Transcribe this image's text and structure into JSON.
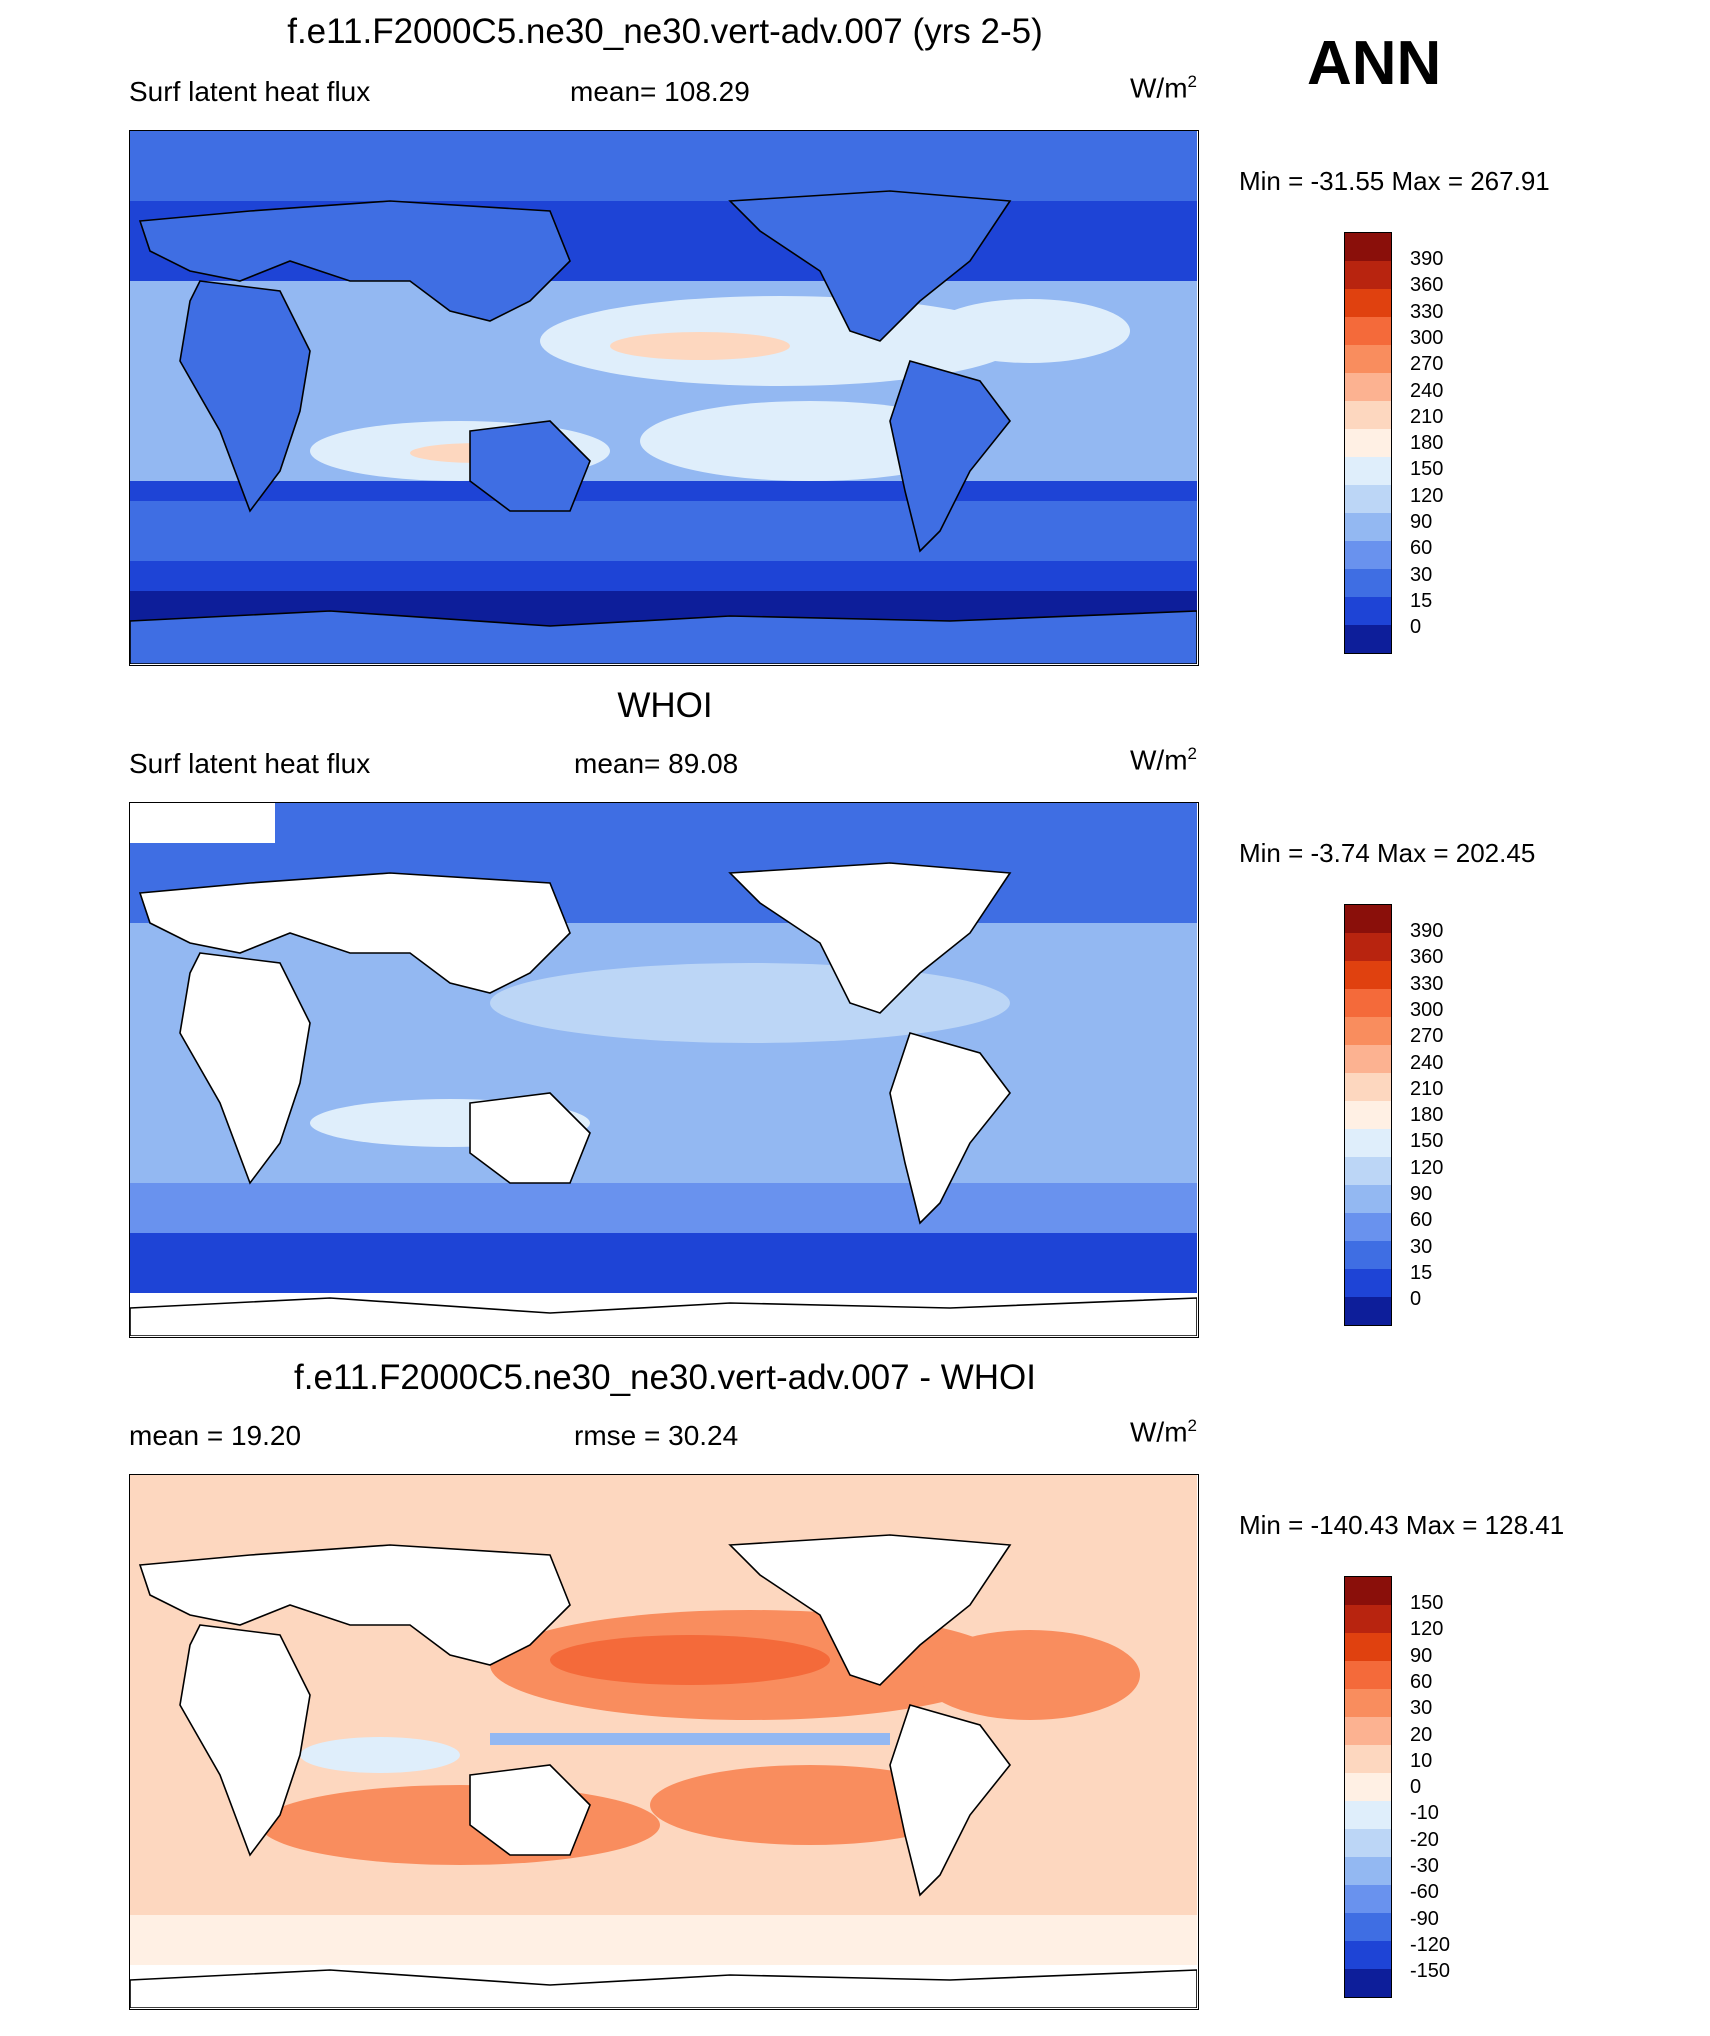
{
  "season": "ANN",
  "panels": [
    {
      "title": "f.e11.F2000C5.ne30_ne30.vert-adv.007 (yrs 2-5)",
      "left_label": "Surf latent heat flux",
      "center_label": "mean= 108.29",
      "units": "W/m",
      "units_sup": "2",
      "minmax": "Min = -31.55 Max = 267.91",
      "colorbar_labels": [
        "390",
        "360",
        "330",
        "300",
        "270",
        "240",
        "210",
        "180",
        "150",
        "120",
        "90",
        "60",
        "30",
        "15",
        "0"
      ],
      "colorbar_colors": [
        "#8a0f0a",
        "#b8240f",
        "#e0410f",
        "#f46a3a",
        "#f98d5e",
        "#fcb291",
        "#fdd7bf",
        "#fff0e4",
        "#dfeefb",
        "#bcd6f6",
        "#93b8f2",
        "#6992ee",
        "#3f6ee3",
        "#1e44d6",
        "#0d1e9a"
      ],
      "map_fill": "#1e44d6",
      "land_fill": "#3f6ee3"
    },
    {
      "title": "WHOI",
      "left_label": "Surf latent heat flux",
      "center_label": "mean=  89.08",
      "units": "W/m",
      "units_sup": "2",
      "minmax": "Min =  -3.74 Max = 202.45",
      "colorbar_labels": [
        "390",
        "360",
        "330",
        "300",
        "270",
        "240",
        "210",
        "180",
        "150",
        "120",
        "90",
        "60",
        "30",
        "15",
        "0"
      ],
      "colorbar_colors": [
        "#8a0f0a",
        "#b8240f",
        "#e0410f",
        "#f46a3a",
        "#f98d5e",
        "#fcb291",
        "#fdd7bf",
        "#fff0e4",
        "#dfeefb",
        "#bcd6f6",
        "#93b8f2",
        "#6992ee",
        "#3f6ee3",
        "#1e44d6",
        "#0d1e9a"
      ],
      "map_fill": "#93b8f2",
      "land_fill": "#ffffff"
    },
    {
      "title": "f.e11.F2000C5.ne30_ne30.vert-adv.007 - WHOI",
      "left_label": "mean =  19.20",
      "center_label": "rmse =  30.24",
      "units": "W/m",
      "units_sup": "2",
      "minmax": "Min = -140.43 Max = 128.41",
      "colorbar_labels": [
        "150",
        "120",
        "90",
        "60",
        "30",
        "20",
        "10",
        "0",
        "-10",
        "-20",
        "-30",
        "-60",
        "-90",
        "-120",
        "-150"
      ],
      "colorbar_colors": [
        "#8a0f0a",
        "#b8240f",
        "#e0410f",
        "#f46a3a",
        "#f98d5e",
        "#fcb291",
        "#fdd7bf",
        "#fff0e4",
        "#dfeefb",
        "#bcd6f6",
        "#93b8f2",
        "#6992ee",
        "#3f6ee3",
        "#1e44d6",
        "#0d1e9a"
      ],
      "map_fill": "#fcb291",
      "land_fill": "#ffffff"
    }
  ],
  "chart_data": [
    {
      "type": "heatmap",
      "title": "f.e11.F2000C5.ne30_ne30.vert-adv.007 (yrs 2-5)",
      "variable": "Surf latent heat flux",
      "units": "W/m2",
      "mean": 108.29,
      "min": -31.55,
      "max": 267.91,
      "levels": [
        0,
        15,
        30,
        60,
        90,
        120,
        150,
        180,
        210,
        240,
        270,
        300,
        330,
        360,
        390
      ]
    },
    {
      "type": "heatmap",
      "title": "WHOI",
      "variable": "Surf latent heat flux",
      "units": "W/m2",
      "mean": 89.08,
      "min": -3.74,
      "max": 202.45,
      "levels": [
        0,
        15,
        30,
        60,
        90,
        120,
        150,
        180,
        210,
        240,
        270,
        300,
        330,
        360,
        390
      ]
    },
    {
      "type": "heatmap",
      "title": "f.e11.F2000C5.ne30_ne30.vert-adv.007 - WHOI",
      "units": "W/m2",
      "mean": 19.2,
      "rmse": 30.24,
      "min": -140.43,
      "max": 128.41,
      "levels": [
        -150,
        -120,
        -90,
        -60,
        -30,
        -20,
        -10,
        0,
        10,
        20,
        30,
        60,
        90,
        120,
        150
      ]
    }
  ]
}
